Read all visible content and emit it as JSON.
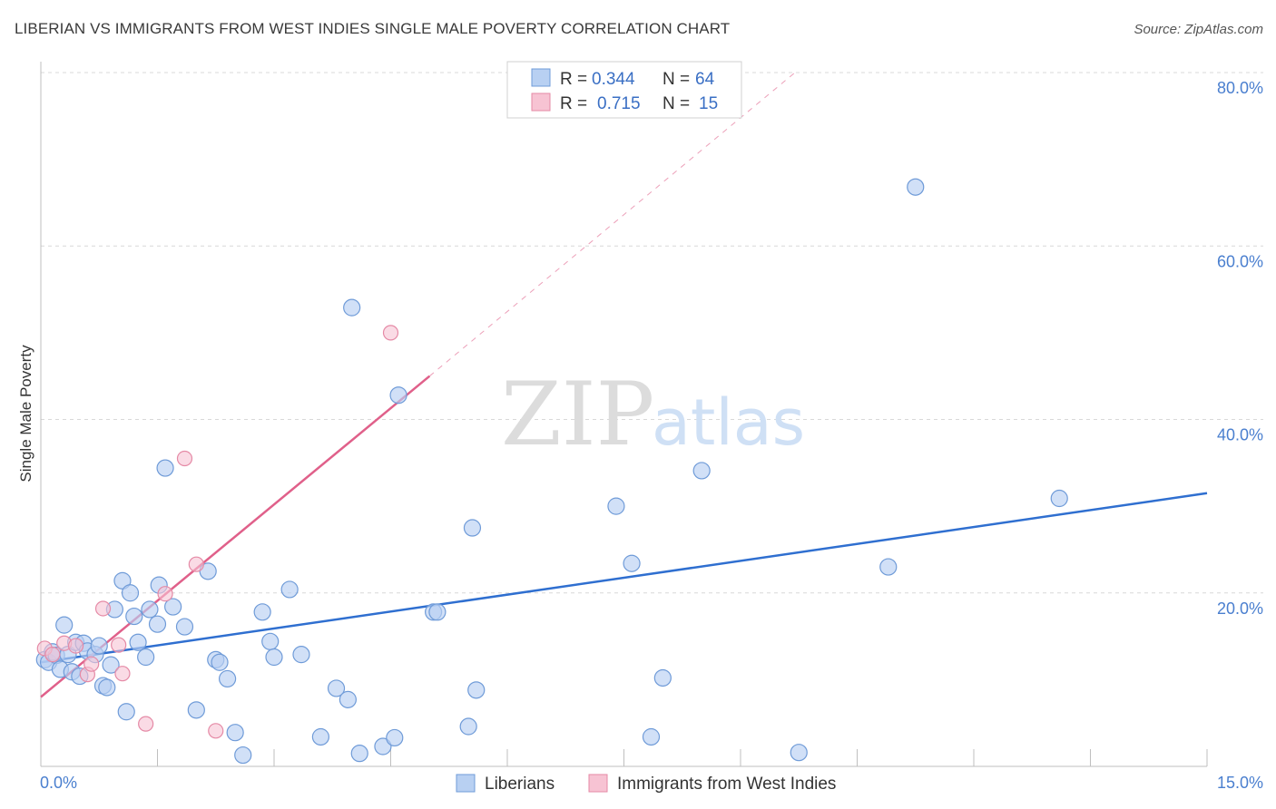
{
  "title": "LIBERIAN VS IMMIGRANTS FROM WEST INDIES SINGLE MALE POVERTY CORRELATION CHART",
  "source": "Source: ZipAtlas.com",
  "watermark": {
    "zip": "ZIP",
    "atlas": "atlas"
  },
  "legend": {
    "rows": [
      {
        "r_label": "R =",
        "r_value": "0.344",
        "n_label": "N =",
        "n_value": "64"
      },
      {
        "r_label": "R =",
        "r_value": "0.715",
        "n_label": "N =",
        "n_value": "15"
      }
    ]
  },
  "colors": {
    "liberians_fill": "#b8d0f2",
    "liberians_stroke": "#6f9bd8",
    "liberians_line": "#2f6fd0",
    "westindies_fill": "#f7c3d3",
    "westindies_stroke": "#e58aa6",
    "westindies_line": "#e0608a",
    "grid": "#d8d8d8",
    "tick_text": "#4a7fcf"
  },
  "chart_data": {
    "type": "scatter",
    "title": "LIBERIAN VS IMMIGRANTS FROM WEST INDIES SINGLE MALE POVERTY CORRELATION CHART",
    "xlabel": "",
    "ylabel": "Single Male Poverty",
    "xlim": [
      0,
      15
    ],
    "ylim": [
      0,
      80
    ],
    "x_tick_labels": [
      "0.0%",
      "15.0%"
    ],
    "y_ticks": [
      20,
      40,
      60,
      80
    ],
    "y_tick_labels": [
      "20.0%",
      "40.0%",
      "60.0%",
      "80.0%"
    ],
    "grid": true,
    "legend_placement": "top-center",
    "series": [
      {
        "name": "Liberians",
        "r": 0.344,
        "n": 64,
        "trend": {
          "x": [
            0,
            15
          ],
          "y": [
            12.0,
            31.5
          ]
        },
        "points": [
          [
            0.05,
            12.3
          ],
          [
            0.1,
            12.0
          ],
          [
            0.15,
            13.2
          ],
          [
            0.2,
            12.8
          ],
          [
            0.25,
            11.2
          ],
          [
            0.3,
            16.3
          ],
          [
            0.35,
            12.9
          ],
          [
            0.4,
            10.9
          ],
          [
            0.45,
            14.3
          ],
          [
            0.5,
            10.4
          ],
          [
            0.55,
            14.2
          ],
          [
            0.6,
            13.3
          ],
          [
            0.7,
            12.9
          ],
          [
            0.75,
            13.9
          ],
          [
            0.8,
            9.3
          ],
          [
            0.85,
            9.1
          ],
          [
            0.9,
            11.7
          ],
          [
            0.95,
            18.1
          ],
          [
            1.05,
            21.4
          ],
          [
            1.1,
            6.3
          ],
          [
            1.15,
            20.0
          ],
          [
            1.2,
            17.3
          ],
          [
            1.25,
            14.3
          ],
          [
            1.35,
            12.6
          ],
          [
            1.4,
            18.1
          ],
          [
            1.5,
            16.4
          ],
          [
            1.52,
            20.9
          ],
          [
            1.6,
            34.4
          ],
          [
            1.7,
            18.4
          ],
          [
            1.85,
            16.1
          ],
          [
            2.0,
            6.5
          ],
          [
            2.15,
            22.5
          ],
          [
            2.25,
            12.3
          ],
          [
            2.3,
            12.0
          ],
          [
            2.4,
            10.1
          ],
          [
            2.5,
            3.9
          ],
          [
            2.6,
            1.3
          ],
          [
            2.85,
            17.8
          ],
          [
            2.95,
            14.4
          ],
          [
            3.0,
            12.6
          ],
          [
            3.2,
            20.4
          ],
          [
            3.35,
            12.9
          ],
          [
            3.6,
            3.4
          ],
          [
            3.8,
            9.0
          ],
          [
            3.95,
            7.7
          ],
          [
            4.0,
            52.9
          ],
          [
            4.1,
            1.5
          ],
          [
            4.4,
            2.3
          ],
          [
            4.55,
            3.3
          ],
          [
            4.6,
            42.8
          ],
          [
            5.05,
            17.8
          ],
          [
            5.1,
            17.8
          ],
          [
            5.5,
            4.6
          ],
          [
            5.55,
            27.5
          ],
          [
            5.6,
            8.8
          ],
          [
            7.4,
            30.0
          ],
          [
            7.6,
            23.4
          ],
          [
            7.85,
            3.4
          ],
          [
            8.0,
            10.2
          ],
          [
            8.5,
            34.1
          ],
          [
            9.75,
            1.6
          ],
          [
            10.9,
            23.0
          ],
          [
            11.25,
            66.8
          ],
          [
            13.1,
            30.9
          ]
        ]
      },
      {
        "name": "Immigrants from West Indies",
        "r": 0.715,
        "n": 15,
        "trend": {
          "x": [
            0,
            5.0
          ],
          "y": [
            8.0,
            45.0
          ]
        },
        "trend_extension": {
          "x": [
            5.0,
            9.7
          ],
          "y": [
            45.0,
            80.0
          ]
        },
        "points": [
          [
            0.05,
            13.6
          ],
          [
            0.15,
            12.9
          ],
          [
            0.3,
            14.2
          ],
          [
            0.45,
            13.9
          ],
          [
            0.6,
            10.6
          ],
          [
            0.65,
            11.8
          ],
          [
            0.8,
            18.2
          ],
          [
            1.0,
            14.0
          ],
          [
            1.05,
            10.7
          ],
          [
            1.35,
            4.9
          ],
          [
            1.6,
            19.9
          ],
          [
            1.85,
            35.5
          ],
          [
            2.0,
            23.3
          ],
          [
            2.25,
            4.1
          ],
          [
            4.5,
            50.0
          ]
        ]
      }
    ]
  }
}
